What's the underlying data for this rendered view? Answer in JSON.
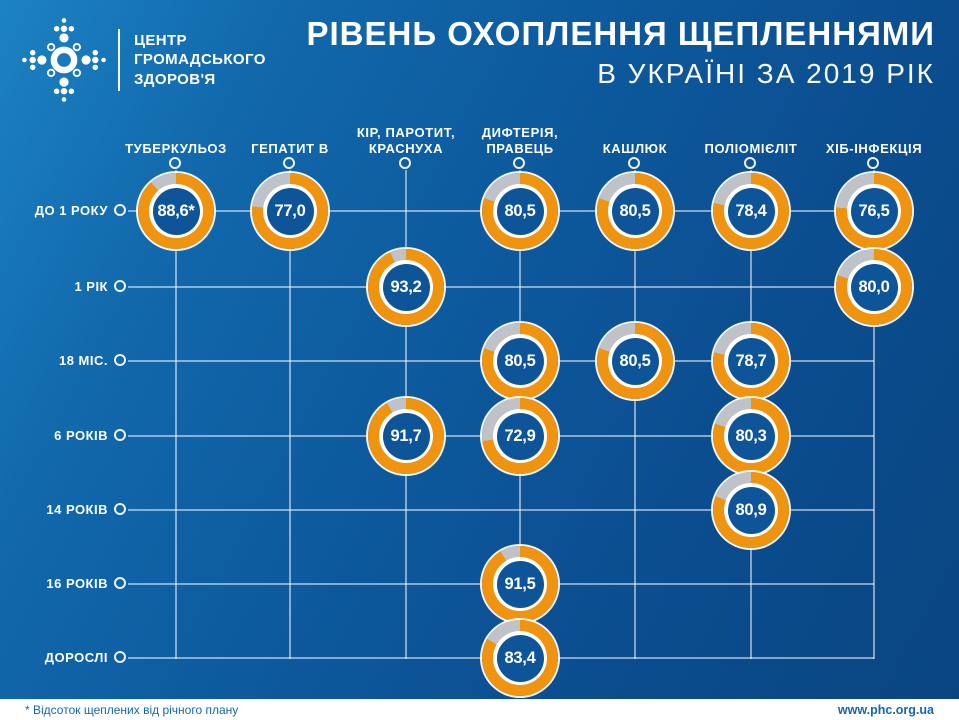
{
  "brand": {
    "lines": [
      "ЦЕНТР",
      "ГРОМАДСЬКОГО",
      "ЗДОРОВ'Я"
    ]
  },
  "title": {
    "line1": "РІВЕНЬ ОХОПЛЕННЯ ЩЕПЛЕННЯМИ",
    "line2": "В УКРАЇНІ ЗА 2019 РІК"
  },
  "footer": {
    "note": "* Відсоток щеплених від річного плану",
    "website": "www.phc.org.ua"
  },
  "colors": {
    "accent_orange": "#F0930F",
    "remainder_gray": "#BFC3C7",
    "donut_center_blue": "#0D5499",
    "background_blue": "#0D5A9E",
    "footer_text_blue": "#1766AB",
    "grid_line": "rgba(255,255,255,0.5)"
  },
  "chart_data": {
    "type": "table",
    "subtype": "donut-gauge-matrix",
    "unit": "percent",
    "title": "РІВЕНЬ ОХОПЛЕННЯ ЩЕПЛЕННЯМИ В УКРАЇНІ ЗА 2019 РІК",
    "note": "* Відсоток щеплених від річного плану",
    "columns": [
      [
        "ТУБЕРКУЛЬОЗ"
      ],
      [
        "ГЕПАТИТ В"
      ],
      [
        "КІР, ПАРОТИТ,",
        "КРАСНУХА"
      ],
      [
        "ДИФТЕРІЯ,",
        "ПРАВЕЦЬ"
      ],
      [
        "КАШЛЮК"
      ],
      [
        "ПОЛІОМІЄЛІТ"
      ],
      [
        "ХІБ-ІНФЕКЦІЯ"
      ]
    ],
    "rows": [
      "ДО 1 РОКУ",
      "1 РІК",
      "18 МІС.",
      "6 РОКІВ",
      "14 РОКІВ",
      "16 РОКІВ",
      "ДОРОСЛІ"
    ],
    "values": [
      [
        88.6,
        77.0,
        null,
        80.5,
        80.5,
        78.4,
        76.5
      ],
      [
        null,
        null,
        93.2,
        null,
        null,
        null,
        80.0
      ],
      [
        null,
        null,
        null,
        80.5,
        80.5,
        78.7,
        null
      ],
      [
        null,
        null,
        91.7,
        72.9,
        null,
        80.3,
        null
      ],
      [
        null,
        null,
        null,
        null,
        null,
        80.9,
        null
      ],
      [
        null,
        null,
        null,
        91.5,
        null,
        null,
        null
      ],
      [
        null,
        null,
        null,
        83.4,
        null,
        null,
        null
      ]
    ],
    "labels": [
      [
        "88,6*",
        "77,0",
        null,
        "80,5",
        "80,5",
        "78,4",
        "76,5"
      ],
      [
        null,
        null,
        "93,2",
        null,
        null,
        null,
        "80,0"
      ],
      [
        null,
        null,
        null,
        "80,5",
        "80,5",
        "78,7",
        null
      ],
      [
        null,
        null,
        "91,7",
        "72,9",
        null,
        "80,3",
        null
      ],
      [
        null,
        null,
        null,
        null,
        null,
        "80,9",
        null
      ],
      [
        null,
        null,
        null,
        "91,5",
        null,
        null,
        null
      ],
      [
        null,
        null,
        null,
        "83,4",
        null,
        null,
        null
      ]
    ],
    "gauge_full_color": "#F0930F",
    "gauge_rest_color": "#BFC3C7",
    "value_range": [
      0,
      100
    ]
  }
}
